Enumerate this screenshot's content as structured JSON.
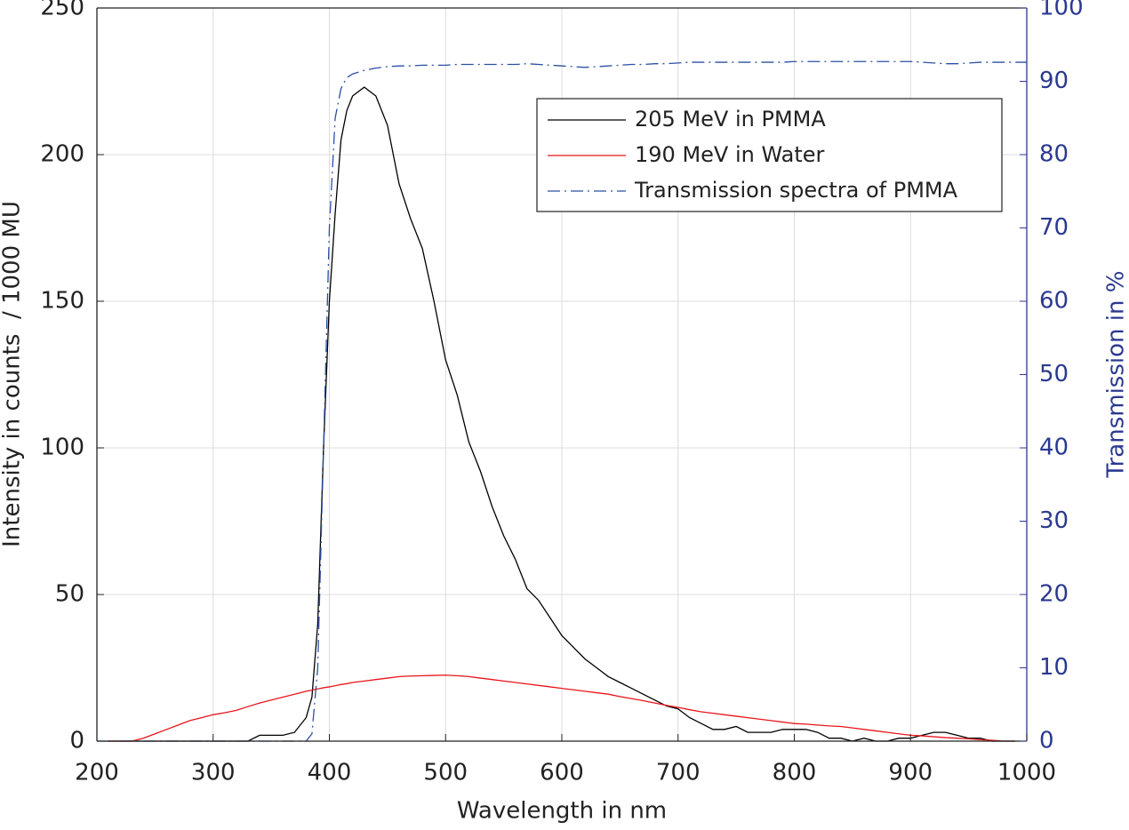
{
  "chart_data": {
    "type": "line",
    "xlabel": "Wavelength in nm",
    "ylabel": "Intensity in counts  / 1000 MU",
    "y2label": "Transmission in %",
    "x": [
      200,
      210,
      220,
      230,
      240,
      250,
      260,
      270,
      280,
      290,
      300,
      310,
      320,
      330,
      340,
      350,
      360,
      370,
      380,
      385,
      390,
      395,
      400,
      405,
      410,
      415,
      420,
      430,
      440,
      450,
      460,
      470,
      480,
      490,
      500,
      510,
      520,
      530,
      540,
      550,
      560,
      570,
      580,
      590,
      600,
      610,
      620,
      630,
      640,
      650,
      660,
      670,
      680,
      690,
      700,
      710,
      720,
      730,
      740,
      750,
      760,
      770,
      780,
      790,
      800,
      810,
      820,
      830,
      840,
      850,
      860,
      870,
      880,
      890,
      900,
      910,
      920,
      930,
      940,
      950,
      960,
      970,
      980,
      990,
      1000
    ],
    "series": [
      {
        "name": "205 MeV in PMMA",
        "color": "#000000",
        "style": "solid",
        "values": [
          null,
          0,
          0,
          0,
          0,
          0,
          0,
          0,
          0,
          0,
          0,
          0,
          0,
          0,
          2,
          2,
          2,
          3,
          8,
          15,
          40,
          100,
          150,
          180,
          205,
          215,
          220,
          223,
          220,
          210,
          190,
          178,
          168,
          150,
          130,
          118,
          102,
          92,
          80,
          70,
          62,
          52,
          48,
          42,
          36,
          32,
          28,
          25,
          22,
          20,
          18,
          16,
          14,
          12,
          11,
          8,
          6,
          4,
          4,
          5,
          3,
          3,
          3,
          4,
          4,
          4,
          3,
          1,
          1,
          0,
          1,
          0,
          0,
          1,
          1,
          2,
          3,
          3,
          2,
          1,
          1,
          0,
          0,
          0,
          null
        ]
      },
      {
        "name": "190 MeV in Water",
        "color": "#e8151b",
        "style": "solid",
        "values": [
          null,
          0,
          0,
          0,
          1,
          2.5,
          4,
          5.5,
          7,
          8,
          9,
          9.7,
          10.5,
          11.8,
          13,
          14,
          15,
          16,
          17,
          17.4,
          17.8,
          18.2,
          18.5,
          18.9,
          19.3,
          19.6,
          20,
          20.5,
          21,
          21.5,
          22,
          22.2,
          22.3,
          22.4,
          22.5,
          22.3,
          22,
          21.5,
          21,
          20.5,
          20,
          19.5,
          19,
          18.5,
          18,
          17.5,
          17,
          16.5,
          16,
          15.2,
          14.5,
          13.8,
          13,
          12.2,
          11.5,
          10.7,
          10,
          9.5,
          9,
          8.5,
          8,
          7.5,
          7,
          6.5,
          6,
          5.8,
          5.5,
          5.2,
          5,
          4.5,
          4,
          3.5,
          3,
          2.5,
          2,
          1.8,
          1.5,
          1.2,
          1,
          0.8,
          0.5,
          0.3,
          0,
          0,
          null
        ]
      },
      {
        "name": "Transmission spectra of PMMA",
        "color": "#2b4fa3",
        "style": "dashdot",
        "axis": "y2",
        "values": [
          0,
          0,
          0,
          0,
          0,
          0,
          0,
          0,
          0,
          0,
          0,
          0,
          0,
          0,
          0,
          0,
          0,
          0,
          0,
          1,
          10,
          40,
          70,
          85,
          89,
          90.5,
          91,
          91.5,
          91.8,
          92,
          92.1,
          92.1,
          92.2,
          92.2,
          92.2,
          92.3,
          92.3,
          92.3,
          92.3,
          92.3,
          92.3,
          92.4,
          92.3,
          92.2,
          92.1,
          92,
          91.9,
          92,
          92.1,
          92.2,
          92.3,
          92.3,
          92.4,
          92.4,
          92.5,
          92.6,
          92.6,
          92.6,
          92.6,
          92.6,
          92.6,
          92.6,
          92.6,
          92.6,
          92.7,
          92.7,
          92.7,
          92.7,
          92.7,
          92.7,
          92.7,
          92.7,
          92.7,
          92.7,
          92.7,
          92.6,
          92.5,
          92.4,
          92.4,
          92.5,
          92.6,
          92.6,
          92.6,
          92.6,
          92.6
        ]
      }
    ],
    "xlim": [
      200,
      1000
    ],
    "xticks": [
      200,
      300,
      400,
      500,
      600,
      700,
      800,
      900,
      1000
    ],
    "ylim": [
      0,
      250
    ],
    "yticks": [
      0,
      50,
      100,
      150,
      200,
      250
    ],
    "y2lim": [
      0,
      100
    ],
    "y2ticks": [
      0,
      10,
      20,
      30,
      40,
      50,
      60,
      70,
      80,
      90,
      100
    ],
    "y2color": "#2b3990",
    "grid": true,
    "legend": "northeast"
  }
}
